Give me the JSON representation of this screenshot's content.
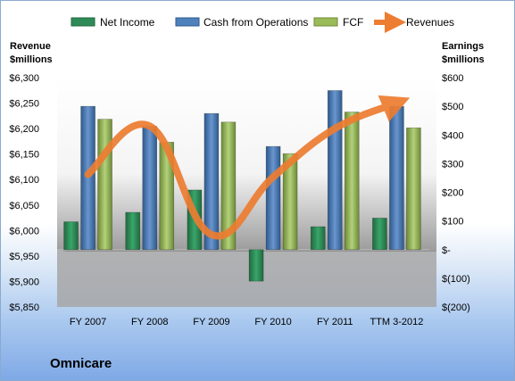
{
  "company": "Omnicare",
  "chart_data": {
    "type": "bar",
    "categories": [
      "FY 2007",
      "FY 2008",
      "FY 2009",
      "FY 2010",
      "FY 2011",
      "TTM 3-2012"
    ],
    "series": [
      {
        "name": "Net Income",
        "axis": "right",
        "color": "#2e8b57",
        "values": [
          97,
          130,
          208,
          -110,
          80,
          110
        ]
      },
      {
        "name": "Cash from Operations",
        "axis": "right",
        "color": "#4f81bd",
        "values": [
          500,
          430,
          475,
          360,
          555,
          500
        ]
      },
      {
        "name": "FCF",
        "axis": "right",
        "color": "#9bbb59",
        "values": [
          455,
          375,
          445,
          335,
          480,
          425
        ]
      },
      {
        "name": "Revenues",
        "axis": "left",
        "type": "line",
        "color": "#ed7d31",
        "values": [
          6110,
          6205,
          5992,
          6105,
          6200,
          6250
        ]
      }
    ],
    "left_axis": {
      "label_line1": "Revenue",
      "label_line2": "$millions",
      "min": 5850,
      "max": 6300,
      "ticks": [
        "$6,300",
        "$6,250",
        "$6,200",
        "$6,150",
        "$6,100",
        "$6,050",
        "$6,000",
        "$5,950",
        "$5,900",
        "$5,850"
      ]
    },
    "right_axis": {
      "label_line1": "Earnings",
      "label_line2": "$millions",
      "min": -200,
      "max": 600,
      "ticks": [
        "$600",
        "$500",
        "$400",
        "$300",
        "$200",
        "$100",
        "$-",
        "$(100)",
        "$(200)"
      ]
    },
    "grid": false,
    "legend_position": "top"
  }
}
